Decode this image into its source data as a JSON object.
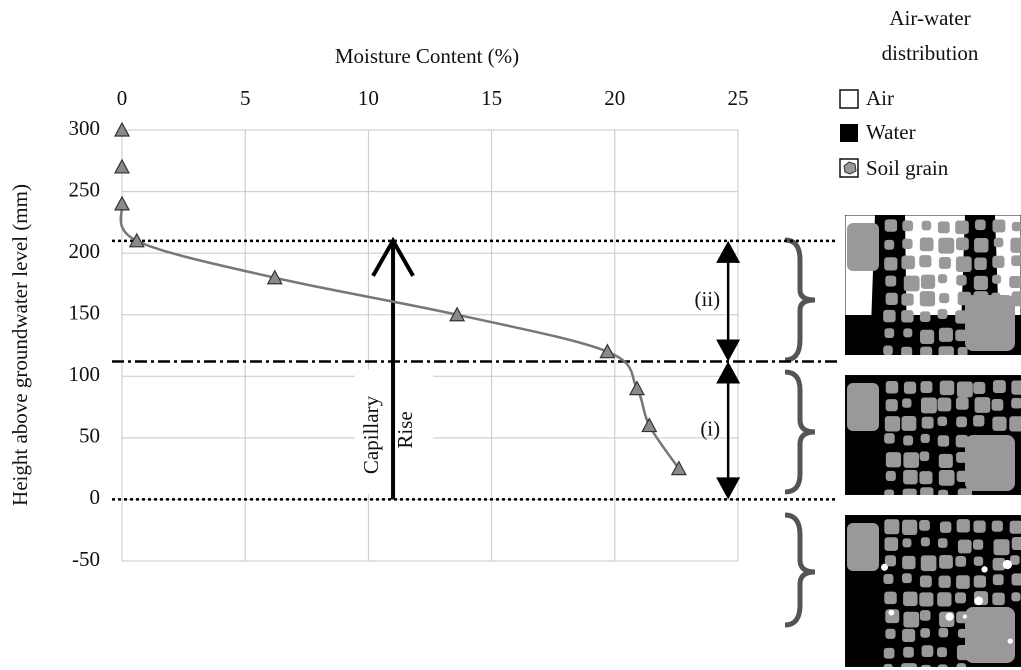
{
  "chart_data": {
    "type": "scatter",
    "x_label": "Moisture Content (%)",
    "y_label": "Height above groundwater level (mm)",
    "x": [
      0,
      0,
      0,
      0.6,
      6.2,
      13.6,
      19.7,
      20.9,
      21.4,
      22.6
    ],
    "values": [
      300,
      270,
      240,
      210,
      180,
      150,
      120,
      90,
      60,
      25
    ],
    "marker_color": "#8a8a8a",
    "line_color": "#777777",
    "xlim": [
      0,
      25
    ],
    "xticks": [
      0,
      5,
      10,
      15,
      20,
      25
    ],
    "ylim": [
      -50,
      300
    ],
    "yticks": [
      300,
      250,
      200,
      150,
      100,
      50,
      0,
      -50
    ],
    "grid": true,
    "reference_lines": [
      {
        "value": 210,
        "style": "dotted"
      },
      {
        "value": 112,
        "style": "dashdot"
      },
      {
        "value": 0,
        "style": "dotted"
      }
    ],
    "capillary_arrow": {
      "text": [
        "Capillary",
        "Rise"
      ],
      "x": 11,
      "y": [
        0,
        210
      ]
    },
    "zones": {
      "x": 24.6,
      "items": [
        {
          "label": "(ii)",
          "range": [
            112,
            210
          ]
        },
        {
          "label": "(i)",
          "range": [
            0,
            112
          ]
        }
      ]
    },
    "legend": {
      "title": [
        "Air-water",
        "distribution"
      ],
      "items": [
        "Air",
        "Water",
        "Soil grain"
      ]
    }
  }
}
